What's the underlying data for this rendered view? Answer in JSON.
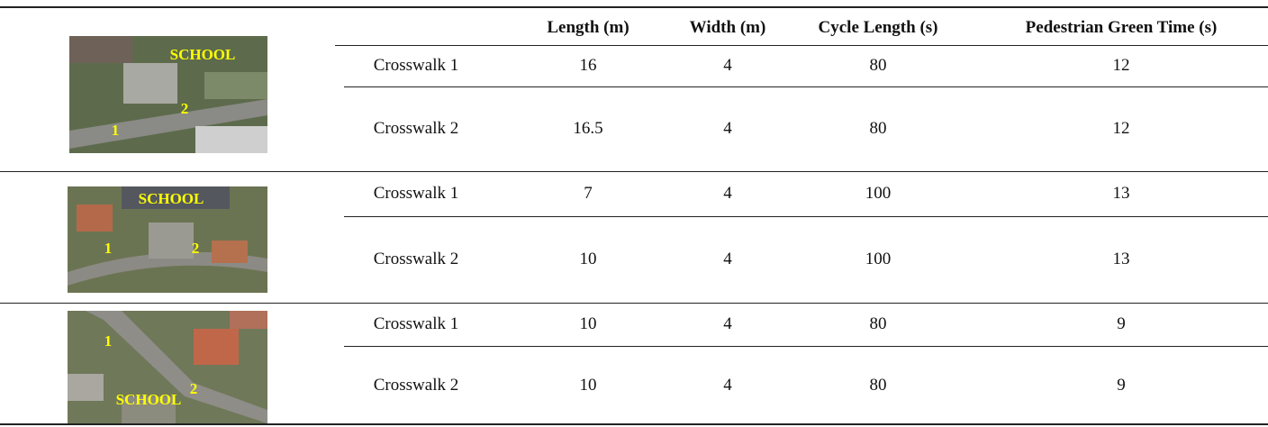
{
  "table": {
    "header": [
      "Length (m)",
      "Width (m)",
      "Cycle Length (s)",
      "Pedestrian Green Time (s)"
    ],
    "groups": [
      {
        "image_labels": [
          "SCHOOL",
          "1",
          "2"
        ],
        "rows": [
          [
            "Crosswalk 1",
            16,
            4,
            80,
            12
          ],
          [
            "Crosswalk 2",
            16.5,
            4,
            80,
            12
          ]
        ]
      },
      {
        "image_labels": [
          "SCHOOL",
          "1",
          "2"
        ],
        "rows": [
          [
            "Crosswalk 1",
            7,
            4,
            100,
            13
          ],
          [
            "Crosswalk 2",
            10,
            4,
            100,
            13
          ]
        ]
      },
      {
        "image_labels": [
          "SCHOOL",
          "1",
          "2"
        ],
        "rows": [
          [
            "Crosswalk 1",
            10,
            4,
            80,
            9
          ],
          [
            "Crosswalk 2",
            10,
            4,
            80,
            9
          ]
        ]
      }
    ]
  }
}
